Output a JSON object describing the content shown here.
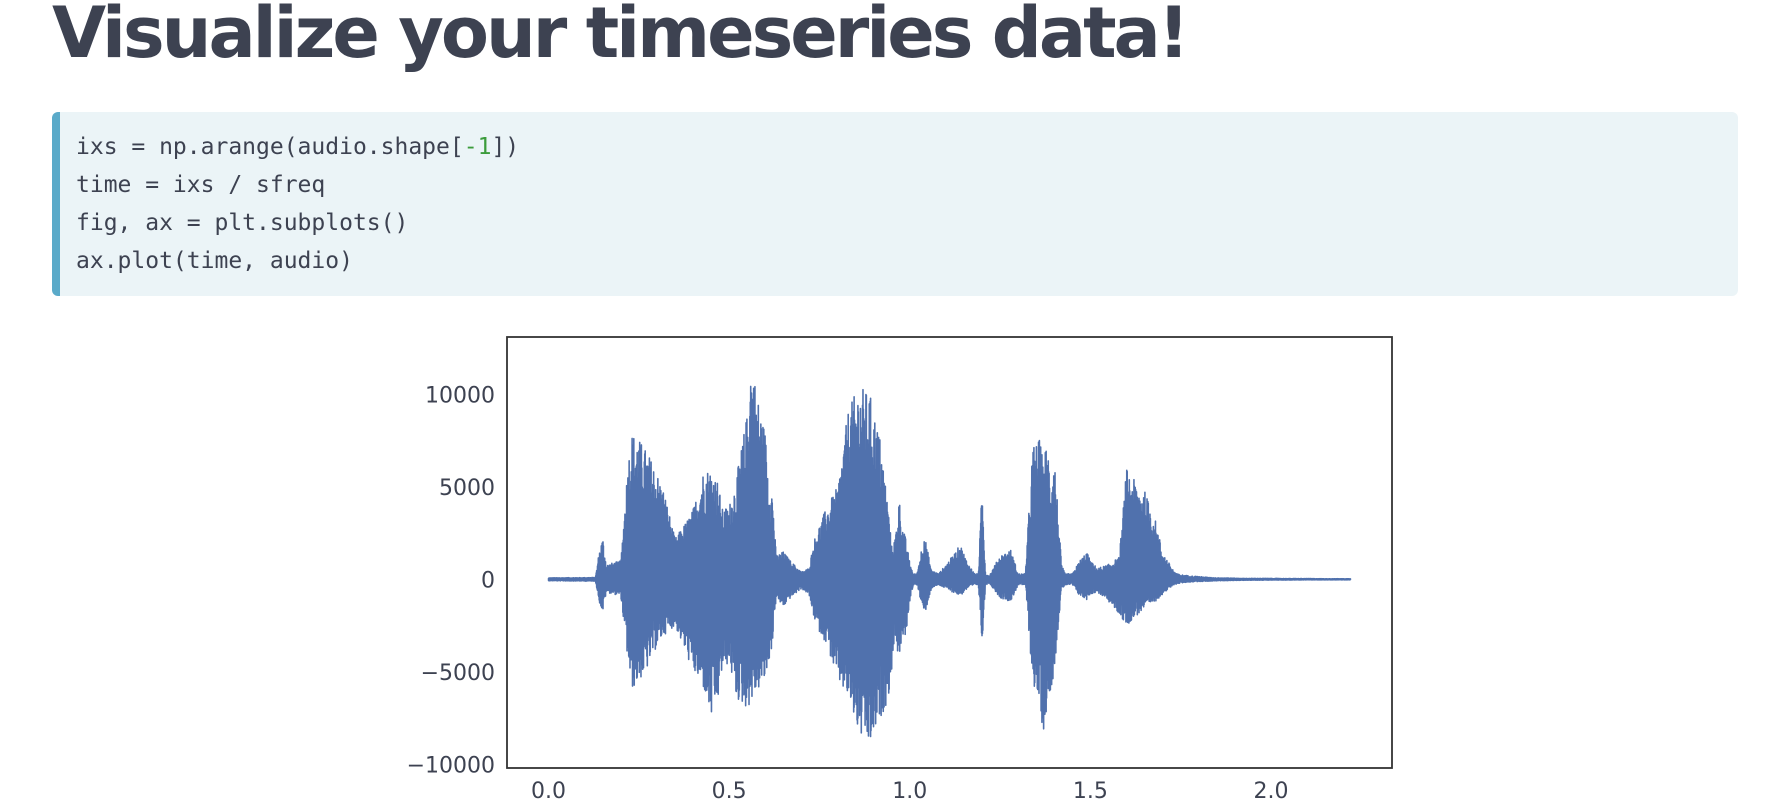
{
  "slide": {
    "title": "Visualize your timeseries data!"
  },
  "code": {
    "lines": [
      [
        {
          "text": "ixs = np.arange(audio.shape["
        },
        {
          "text": "-1",
          "kind": "number"
        },
        {
          "text": "])"
        }
      ],
      [
        {
          "text": "time = ixs / sfreq"
        }
      ],
      [
        {
          "text": "fig, ax = plt.subplots()"
        }
      ],
      [
        {
          "text": "ax.plot(time, audio)"
        }
      ]
    ]
  },
  "colors": {
    "title": "#3d4251",
    "code_background": "#ebf4f7",
    "code_accent": "#5aaac9",
    "code_number": "#3c9c3c",
    "series": "#5071ad"
  },
  "chart_data": {
    "type": "line",
    "title": "",
    "xlabel": "",
    "ylabel": "",
    "xlim": [
      -0.115,
      2.335
    ],
    "ylim": [
      -10200,
      13100
    ],
    "xticks": [
      0.0,
      0.5,
      1.0,
      1.5,
      2.0
    ],
    "xtick_labels": [
      "0.0",
      "0.5",
      "1.0",
      "1.5",
      "2.0"
    ],
    "yticks": [
      10000,
      5000,
      0,
      -5000,
      -10000
    ],
    "ytick_labels": [
      "10000",
      "5000",
      "0",
      "−5000",
      "−10000"
    ],
    "grid": false,
    "legend": "none",
    "series": [
      {
        "envelope_time": [
          0.0,
          0.13,
          0.14,
          0.15,
          0.16,
          0.2,
          0.22,
          0.23,
          0.25,
          0.27,
          0.29,
          0.32,
          0.35,
          0.38,
          0.4,
          0.43,
          0.45,
          0.47,
          0.48,
          0.5,
          0.52,
          0.55,
          0.56,
          0.57,
          0.58,
          0.6,
          0.61,
          0.62,
          0.63,
          0.65,
          0.67,
          0.7,
          0.72,
          0.74,
          0.77,
          0.8,
          0.83,
          0.86,
          0.89,
          0.92,
          0.94,
          0.95,
          0.96,
          0.97,
          0.98,
          0.99,
          1.0,
          1.01,
          1.02,
          1.04,
          1.06,
          1.08,
          1.1,
          1.12,
          1.14,
          1.16,
          1.18,
          1.19,
          1.2,
          1.21,
          1.22,
          1.25,
          1.28,
          1.3,
          1.32,
          1.34,
          1.36,
          1.37,
          1.38,
          1.39,
          1.4,
          1.42,
          1.43,
          1.45,
          1.47,
          1.49,
          1.5,
          1.52,
          1.55,
          1.58,
          1.6,
          1.62,
          1.65,
          1.68,
          1.7,
          1.72,
          1.73,
          1.74,
          1.75,
          1.77,
          1.8,
          1.83,
          1.85,
          1.88,
          1.9,
          1.93,
          1.95,
          2.0,
          2.05,
          2.1,
          2.15,
          2.2,
          2.22
        ],
        "envelope_upper": [
          80,
          100,
          1500,
          2300,
          800,
          1000,
          6500,
          8000,
          7600,
          7000,
          6300,
          4800,
          2200,
          3100,
          3800,
          6000,
          6000,
          5300,
          3800,
          4000,
          5500,
          9000,
          12000,
          11000,
          9800,
          8000,
          5500,
          4800,
          1300,
          1500,
          1000,
          400,
          600,
          2500,
          3900,
          5000,
          9200,
          10500,
          10000,
          7500,
          4000,
          1800,
          2300,
          4500,
          2900,
          2100,
          900,
          300,
          300,
          2500,
          500,
          300,
          800,
          1300,
          1900,
          900,
          300,
          300,
          5000,
          300,
          200,
          1300,
          1600,
          300,
          300,
          7200,
          7600,
          6300,
          7700,
          5500,
          6900,
          800,
          300,
          300,
          1000,
          1500,
          1000,
          600,
          800,
          1200,
          6000,
          5400,
          4800,
          3200,
          1500,
          800,
          500,
          300,
          250,
          200,
          150,
          100,
          80,
          80,
          60,
          50,
          50,
          50,
          40,
          40,
          30,
          30,
          30
        ],
        "envelope_lower": [
          -80,
          -100,
          -1200,
          -1800,
          -700,
          -900,
          -4500,
          -6000,
          -5500,
          -5000,
          -4000,
          -3000,
          -2500,
          -4000,
          -5000,
          -6000,
          -7600,
          -6500,
          -5000,
          -4500,
          -6500,
          -7000,
          -6700,
          -6300,
          -6000,
          -5500,
          -4500,
          -3500,
          -1000,
          -1500,
          -1000,
          -500,
          -800,
          -2500,
          -3500,
          -5500,
          -6500,
          -8500,
          -9100,
          -7500,
          -6500,
          -5000,
          -3000,
          -4500,
          -3000,
          -3300,
          -1200,
          -300,
          -300,
          -2000,
          -500,
          -300,
          -500,
          -700,
          -900,
          -500,
          -300,
          -300,
          -3500,
          -300,
          -200,
          -1000,
          -1200,
          -300,
          -300,
          -5500,
          -7000,
          -8300,
          -6900,
          -6000,
          -5000,
          -600,
          -300,
          -300,
          -900,
          -1100,
          -800,
          -700,
          -1200,
          -1900,
          -2500,
          -2100,
          -1600,
          -1200,
          -800,
          -500,
          -300,
          -250,
          -200,
          -150,
          -120,
          -100,
          -80,
          -70,
          -60,
          -50,
          -50,
          -40,
          -40,
          -30,
          -30,
          -30,
          -30
        ]
      }
    ]
  }
}
